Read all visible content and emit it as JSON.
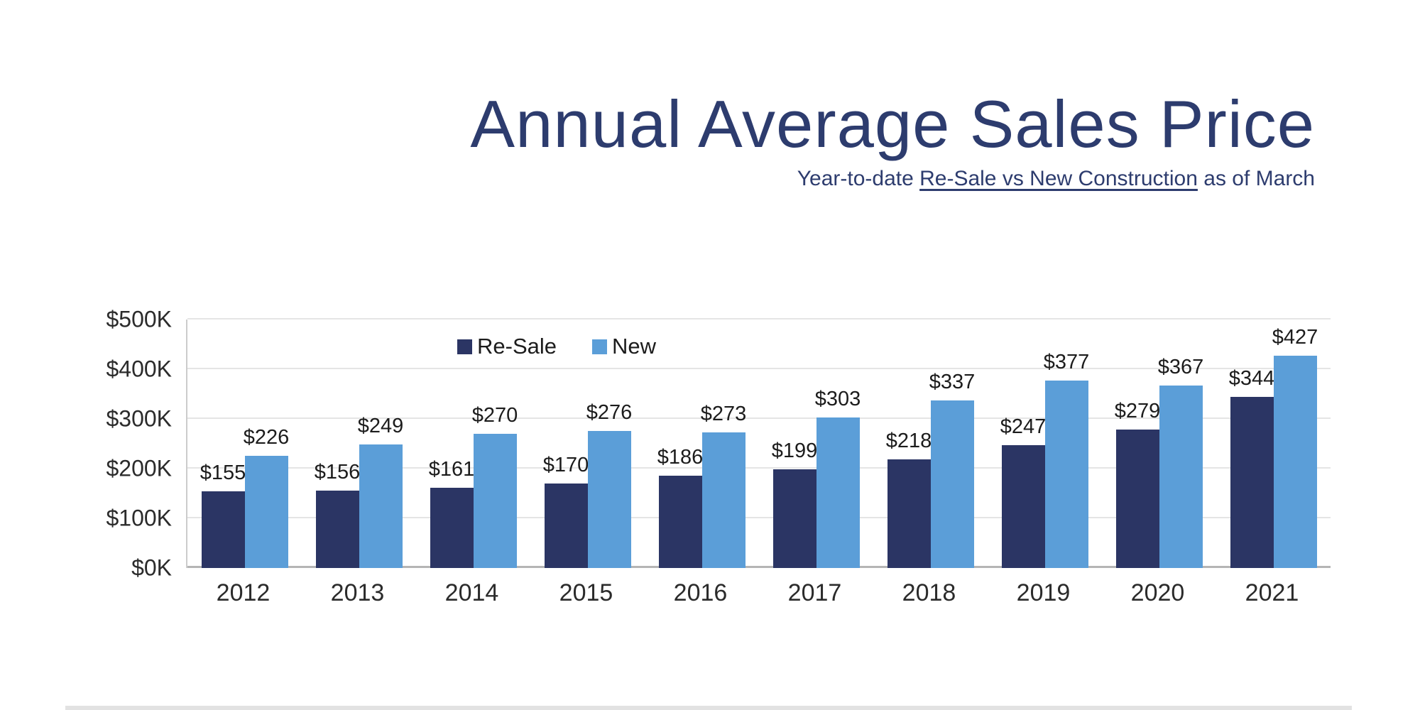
{
  "chart_data": {
    "type": "bar",
    "title": "Annual Average Sales Price",
    "subtitle": "Year-to-date Re-Sale vs New Construction as of March",
    "subtitle_parts": {
      "prefix": "Year-to-date ",
      "underlined": "Re-Sale vs New Construction",
      "suffix": " as of March"
    },
    "categories": [
      "2012",
      "2013",
      "2014",
      "2015",
      "2016",
      "2017",
      "2018",
      "2019",
      "2020",
      "2021"
    ],
    "series": [
      {
        "name": "Re-Sale",
        "color": "#2b3564",
        "values": [
          155,
          156,
          161,
          170,
          186,
          199,
          218,
          247,
          279,
          344
        ]
      },
      {
        "name": "New",
        "color": "#5b9ed8",
        "values": [
          226,
          249,
          270,
          276,
          273,
          303,
          337,
          377,
          367,
          427
        ]
      }
    ],
    "value_prefix": "$",
    "unit": "K",
    "xlabel": "",
    "ylabel": "",
    "ylim": [
      0,
      500
    ],
    "y_ticks": [
      {
        "value": 0,
        "label": "$0K"
      },
      {
        "value": 100,
        "label": "$100K"
      },
      {
        "value": 200,
        "label": "$200K"
      },
      {
        "value": 300,
        "label": "$300K"
      },
      {
        "value": 400,
        "label": "$400K"
      },
      {
        "value": 500,
        "label": "$500K"
      }
    ],
    "grid": true,
    "legend_position": "top-inside-left"
  },
  "colors": {
    "title_text": "#2d3c6e",
    "axis_text": "#2b2b2b",
    "value_label_text": "#1c1c1c",
    "gridline": "#e5e5e5",
    "baseline": "#b5b5b5",
    "resale_bar": "#2b3564",
    "new_bar": "#5b9ed8"
  }
}
